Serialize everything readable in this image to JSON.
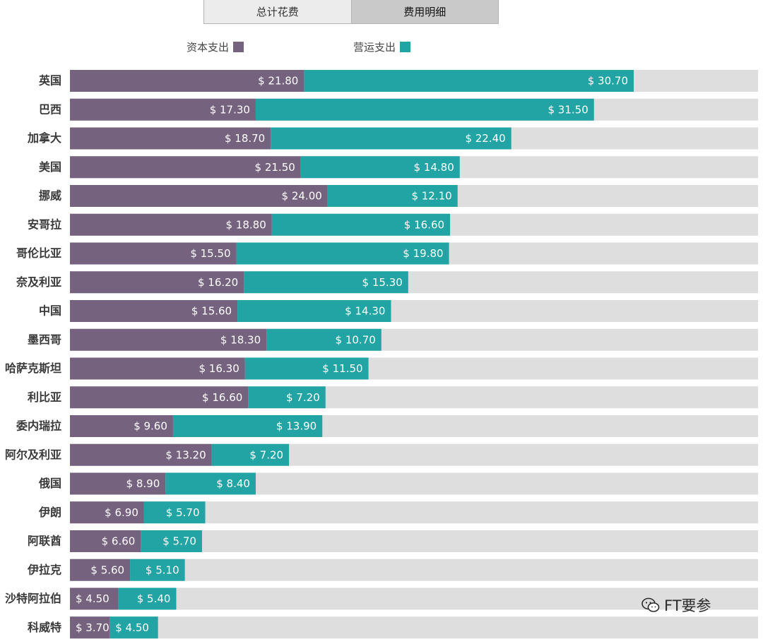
{
  "tabs": [
    {
      "label": "总计花费",
      "active": false
    },
    {
      "label": "费用明细",
      "active": true
    }
  ],
  "legend": [
    {
      "label": "资本支出",
      "color": "#75627f"
    },
    {
      "label": "营运支出",
      "color": "#22a4a4"
    }
  ],
  "watermark": {
    "text": "FT要参",
    "icon": "wechat-icon"
  },
  "chart_data": {
    "type": "bar",
    "orientation": "horizontal",
    "stacked": true,
    "categories": [
      "英国",
      "巴西",
      "加拿大",
      "美国",
      "挪威",
      "安哥拉",
      "哥伦比亚",
      "奈及利亚",
      "中国",
      "墨西哥",
      "哈萨克斯坦",
      "利比亚",
      "委内瑞拉",
      "阿尔及利亚",
      "俄国",
      "伊朗",
      "阿联酋",
      "伊拉克",
      "沙特阿拉伯",
      "科威特"
    ],
    "series": [
      {
        "name": "资本支出",
        "color": "#75627f",
        "values": [
          21.8,
          17.3,
          18.7,
          21.5,
          24.0,
          18.8,
          15.5,
          16.2,
          15.6,
          18.3,
          16.3,
          16.6,
          9.6,
          13.2,
          8.9,
          6.9,
          6.6,
          5.6,
          4.5,
          3.7
        ],
        "labels": [
          "$ 21.80",
          "$ 17.30",
          "$ 18.70",
          "$ 21.50",
          "$ 24.00",
          "$ 18.80",
          "$ 15.50",
          "$ 16.20",
          "$ 15.60",
          "$ 18.30",
          "$ 16.30",
          "$ 16.60",
          "$ 9.60",
          "$ 13.20",
          "$ 8.90",
          "$ 6.90",
          "$ 6.60",
          "$ 5.60",
          "$ 4.50",
          "$ 3.70"
        ]
      },
      {
        "name": "营运支出",
        "color": "#22a4a4",
        "values": [
          30.7,
          31.5,
          22.4,
          14.8,
          12.1,
          16.6,
          19.8,
          15.3,
          14.3,
          10.7,
          11.5,
          7.2,
          13.9,
          7.2,
          8.4,
          5.7,
          5.7,
          5.1,
          5.4,
          4.5
        ],
        "labels": [
          "$ 30.70",
          "$ 31.50",
          "$ 22.40",
          "$ 14.80",
          "$ 12.10",
          "$ 16.60",
          "$ 19.80",
          "$ 15.30",
          "$ 14.30",
          "$ 10.70",
          "$ 11.50",
          "$ 7.20",
          "$ 13.90",
          "$ 7.20",
          "$ 8.40",
          "$ 5.70",
          "$ 5.70",
          "$ 5.10",
          "$ 5.40",
          "$ 4.50"
        ]
      }
    ],
    "xlim": [
      0,
      66.5
    ],
    "background_track_color": "#dedede",
    "grid": false,
    "legend_position": "top"
  }
}
